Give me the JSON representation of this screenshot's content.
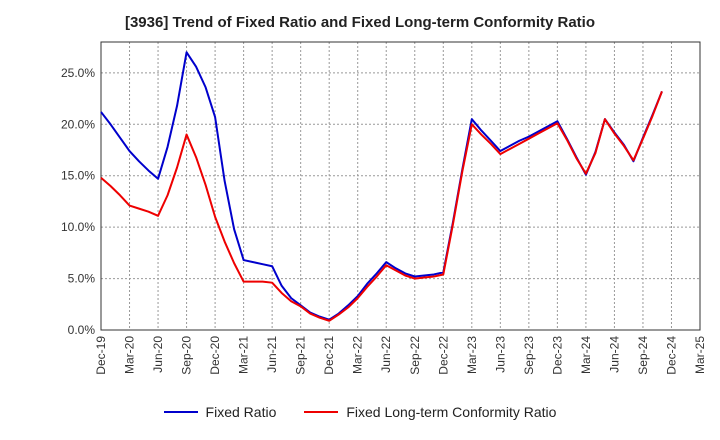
{
  "chart_data": {
    "type": "line",
    "title": "[3936]  Trend of Fixed Ratio and Fixed Long-term Conformity Ratio",
    "xlabel": "",
    "ylabel": "",
    "ylim": [
      0,
      28
    ],
    "yticks": [
      0,
      5,
      10,
      15,
      20,
      25
    ],
    "ytick_labels": [
      "0.0%",
      "5.0%",
      "10.0%",
      "15.0%",
      "20.0%",
      "25.0%"
    ],
    "grid": true,
    "legend_position": "bottom",
    "x_labels": [
      "Dec-19",
      "Mar-20",
      "Jun-20",
      "Sep-20",
      "Dec-20",
      "Mar-21",
      "Jun-21",
      "Sep-21",
      "Dec-21",
      "Mar-22",
      "Jun-22",
      "Sep-22",
      "Dec-22",
      "Mar-23",
      "Jun-23",
      "Sep-23",
      "Dec-23",
      "Mar-24",
      "Jun-24",
      "Sep-24",
      "Dec-24",
      "Mar-25"
    ],
    "series": [
      {
        "name": "Fixed Ratio",
        "color": "#0000cc",
        "values": [
          21.2,
          20.0,
          18.7,
          17.4,
          16.4,
          15.5,
          14.7,
          17.8,
          21.8,
          27.0,
          25.6,
          23.6,
          20.7,
          14.5,
          9.8,
          6.8,
          6.6,
          6.4,
          6.2,
          4.3,
          3.1,
          2.4,
          1.7,
          1.3,
          1.0,
          1.6,
          2.4,
          3.3,
          4.5,
          5.5,
          6.6,
          6.0,
          5.5,
          5.2,
          5.3,
          5.4,
          5.6,
          10.4,
          15.6,
          20.5,
          19.4,
          18.4,
          17.4,
          17.9,
          18.4,
          18.8,
          19.3,
          19.8,
          20.3,
          18.6,
          16.8,
          15.1,
          17.3,
          20.5,
          19.2,
          18.0,
          16.4,
          18.7,
          20.9,
          23.2
        ],
        "start_index": 0
      },
      {
        "name": "Fixed Long-term Conformity Ratio",
        "color": "#ee0000",
        "values": [
          14.8,
          14.0,
          13.1,
          12.1,
          11.8,
          11.5,
          11.1,
          13.1,
          15.8,
          19.0,
          16.8,
          14.1,
          11.0,
          8.6,
          6.5,
          4.7,
          4.7,
          4.7,
          4.6,
          3.6,
          2.8,
          2.3,
          1.6,
          1.2,
          0.9,
          1.5,
          2.2,
          3.1,
          4.2,
          5.2,
          6.3,
          5.8,
          5.3,
          5.0,
          5.1,
          5.2,
          5.4,
          10.2,
          15.4,
          20.0,
          19.0,
          18.1,
          17.1,
          17.6,
          18.1,
          18.6,
          19.1,
          19.6,
          20.1,
          18.5,
          16.7,
          15.2,
          17.2,
          20.5,
          19.1,
          17.9,
          16.5,
          18.6,
          20.8,
          23.2
        ],
        "start_index": 0
      }
    ]
  }
}
